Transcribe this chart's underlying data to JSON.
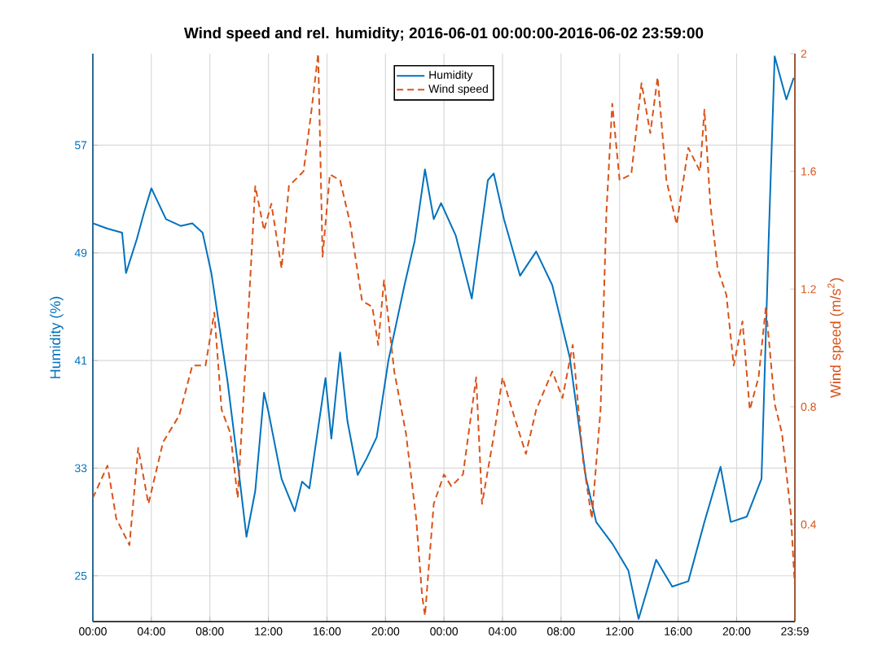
{
  "chart_data": {
    "type": "line",
    "title": "Wind speed and rel. humidity; 2016-06-01 00:00:00-2016-06-02 23:59:00",
    "ylabel": "Humidity (%)",
    "y2label": "Wind speed (m/s$^{2}$)",
    "xlim": [
      "2016-06-01T00:00",
      "2016-06-02T23:59"
    ],
    "xticks": [
      {
        "value": "2016-06-01T00:00",
        "label": "00:00"
      },
      {
        "value": "2016-06-01T04:00",
        "label": "04:00"
      },
      {
        "value": "2016-06-01T08:00",
        "label": "08:00"
      },
      {
        "value": "2016-06-01T12:00",
        "label": "12:00"
      },
      {
        "value": "2016-06-01T16:00",
        "label": "16:00"
      },
      {
        "value": "2016-06-01T20:00",
        "label": "20:00"
      },
      {
        "value": "2016-06-02T00:00",
        "label": "00:00"
      },
      {
        "value": "2016-06-02T04:00",
        "label": "04:00"
      },
      {
        "value": "2016-06-02T08:00",
        "label": "08:00"
      },
      {
        "value": "2016-06-02T12:00",
        "label": "12:00"
      },
      {
        "value": "2016-06-02T16:00",
        "label": "16:00"
      },
      {
        "value": "2016-06-02T20:00",
        "label": "20:00"
      },
      {
        "value": "2016-06-02T23:59",
        "label": "23:59"
      }
    ],
    "ylim": [
      21.6,
      63.8
    ],
    "yticks": [
      25,
      33,
      41,
      49,
      57
    ],
    "y2lim": [
      0.07,
      2
    ],
    "y2ticks": [
      0.4,
      0.8,
      1.2,
      1.6,
      2
    ],
    "grid": true,
    "legend": "top",
    "series": [
      {
        "name": "Humidity",
        "color": "#0072bd",
        "line_style": "solid",
        "x": [
          "2016-06-01T00:00",
          "2016-06-01T01:00",
          "2016-06-01T02:00",
          "2016-06-01T02:16",
          "2016-06-01T03:00",
          "2016-06-01T03:30",
          "2016-06-01T04:00",
          "2016-06-01T05:00",
          "2016-06-01T06:00",
          "2016-06-01T06:48",
          "2016-06-01T07:30",
          "2016-06-01T08:06",
          "2016-06-01T09:12",
          "2016-06-01T09:54",
          "2016-06-01T10:30",
          "2016-06-01T11:06",
          "2016-06-01T11:42",
          "2016-06-01T12:00",
          "2016-06-01T12:54",
          "2016-06-01T13:48",
          "2016-06-01T14:18",
          "2016-06-01T14:48",
          "2016-06-01T15:24",
          "2016-06-01T15:54",
          "2016-06-01T16:18",
          "2016-06-01T16:54",
          "2016-06-01T17:24",
          "2016-06-01T18:06",
          "2016-06-01T18:42",
          "2016-06-01T19:24",
          "2016-06-01T20:12",
          "2016-06-01T21:18",
          "2016-06-01T22:00",
          "2016-06-01T22:42",
          "2016-06-01T23:18",
          "2016-06-01T23:48",
          "2016-06-02T00:48",
          "2016-06-02T01:54",
          "2016-06-02T03:00",
          "2016-06-02T03:24",
          "2016-06-02T04:06",
          "2016-06-02T05:12",
          "2016-06-02T06:18",
          "2016-06-02T07:24",
          "2016-06-02T08:36",
          "2016-06-02T09:42",
          "2016-06-02T10:24",
          "2016-06-02T11:30",
          "2016-06-02T12:36",
          "2016-06-02T13:18",
          "2016-06-02T14:30",
          "2016-06-02T15:36",
          "2016-06-02T16:42",
          "2016-06-02T17:48",
          "2016-06-02T18:54",
          "2016-06-02T19:36",
          "2016-06-02T20:42",
          "2016-06-02T21:42",
          "2016-06-02T22:12",
          "2016-06-02T22:36",
          "2016-06-02T23:24",
          "2016-06-02T23:54"
        ],
        "values": [
          51.2,
          50.8,
          50.5,
          47.5,
          50,
          52,
          53.8,
          51.5,
          51,
          51.2,
          50.5,
          47.5,
          39.5,
          33.4,
          27.9,
          31.3,
          38.6,
          37.2,
          32.2,
          29.8,
          32,
          31.5,
          36,
          39.7,
          35.2,
          41.6,
          36.5,
          32.5,
          33.7,
          35.3,
          41,
          46.6,
          49.9,
          55.2,
          51.5,
          52.7,
          50.3,
          45.6,
          54.4,
          54.9,
          51.5,
          47.3,
          49.1,
          46.6,
          41.2,
          32.3,
          29,
          27.4,
          25.4,
          21.8,
          26.2,
          24.2,
          24.6,
          29,
          33.1,
          29,
          29.4,
          32.2,
          50.3,
          63.6,
          60.4,
          62
        ]
      },
      {
        "name": "Wind speed",
        "color": "#d95319",
        "line_style": "dashed",
        "axis": "y2",
        "x": [
          "2016-06-01T00:00",
          "2016-06-01T01:00",
          "2016-06-01T01:36",
          "2016-06-01T02:30",
          "2016-06-01T03:06",
          "2016-06-01T03:48",
          "2016-06-01T04:48",
          "2016-06-01T05:54",
          "2016-06-01T06:48",
          "2016-06-01T07:42",
          "2016-06-01T08:18",
          "2016-06-01T08:48",
          "2016-06-01T09:24",
          "2016-06-01T09:54",
          "2016-06-01T10:30",
          "2016-06-01T11:06",
          "2016-06-01T11:42",
          "2016-06-01T12:12",
          "2016-06-01T12:54",
          "2016-06-01T13:24",
          "2016-06-01T14:24",
          "2016-06-01T14:54",
          "2016-06-01T15:24",
          "2016-06-01T15:42",
          "2016-06-01T16:12",
          "2016-06-01T16:54",
          "2016-06-01T17:36",
          "2016-06-01T18:24",
          "2016-06-01T19:06",
          "2016-06-01T19:30",
          "2016-06-01T19:54",
          "2016-06-01T20:36",
          "2016-06-01T21:24",
          "2016-06-01T22:06",
          "2016-06-01T22:30",
          "2016-06-01T22:42",
          "2016-06-01T23:18",
          "2016-06-02T00:00",
          "2016-06-02T00:30",
          "2016-06-02T01:18",
          "2016-06-02T02:12",
          "2016-06-02T02:36",
          "2016-06-02T03:24",
          "2016-06-02T04:00",
          "2016-06-02T04:54",
          "2016-06-02T05:36",
          "2016-06-02T06:18",
          "2016-06-02T07:24",
          "2016-06-02T08:06",
          "2016-06-02T08:48",
          "2016-06-02T09:30",
          "2016-06-02T10:06",
          "2016-06-02T10:42",
          "2016-06-02T11:06",
          "2016-06-02T11:30",
          "2016-06-02T12:00",
          "2016-06-02T12:48",
          "2016-06-02T13:30",
          "2016-06-02T14:06",
          "2016-06-02T14:36",
          "2016-06-02T15:12",
          "2016-06-02T15:54",
          "2016-06-02T16:42",
          "2016-06-02T17:30",
          "2016-06-02T17:48",
          "2016-06-02T18:12",
          "2016-06-02T18:42",
          "2016-06-02T19:18",
          "2016-06-02T19:48",
          "2016-06-02T20:24",
          "2016-06-02T20:54",
          "2016-06-02T21:30",
          "2016-06-02T22:00",
          "2016-06-02T22:36",
          "2016-06-02T23:06",
          "2016-06-02T23:42",
          "2016-06-02T23:58"
        ],
        "values": [
          0.49,
          0.6,
          0.42,
          0.33,
          0.66,
          0.47,
          0.68,
          0.77,
          0.94,
          0.94,
          1.12,
          0.79,
          0.71,
          0.49,
          1.0,
          1.55,
          1.4,
          1.49,
          1.27,
          1.55,
          1.6,
          1.79,
          2.0,
          1.31,
          1.59,
          1.57,
          1.42,
          1.16,
          1.14,
          1.01,
          1.23,
          0.92,
          0.71,
          0.42,
          0.16,
          0.09,
          0.47,
          0.57,
          0.53,
          0.57,
          0.9,
          0.47,
          0.7,
          0.9,
          0.75,
          0.64,
          0.79,
          0.92,
          0.83,
          1.01,
          0.62,
          0.42,
          0.79,
          1.46,
          1.83,
          1.57,
          1.59,
          1.9,
          1.73,
          1.92,
          1.57,
          1.42,
          1.68,
          1.6,
          1.81,
          1.49,
          1.27,
          1.18,
          0.94,
          1.09,
          0.79,
          0.9,
          1.14,
          0.81,
          0.71,
          0.44,
          0.2
        ]
      }
    ]
  }
}
